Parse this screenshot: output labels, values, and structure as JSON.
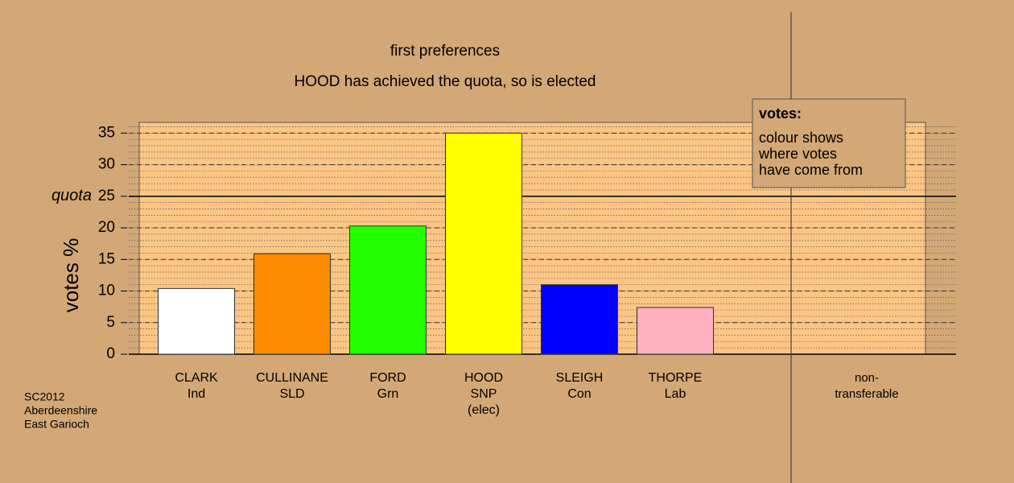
{
  "chart_data": {
    "type": "bar",
    "title": "first preferences",
    "subtitle": "HOOD has achieved the quota, so is elected",
    "y_label": "votes %",
    "categories": [
      [
        "CLARK",
        "Ind"
      ],
      [
        "CULLINANE",
        "SLD"
      ],
      [
        "FORD",
        "Grn"
      ],
      [
        "HOOD",
        "SNP",
        "(elec)"
      ],
      [
        "SLEIGH",
        "Con"
      ],
      [
        "THORPE",
        "Lab"
      ],
      null,
      [
        "non-",
        "transferable"
      ]
    ],
    "values": [
      10.4,
      15.9,
      20.3,
      35.0,
      11.0,
      7.4,
      null,
      null
    ],
    "colors": [
      "#ffffff",
      "#ff8c00",
      "#22ff00",
      "#ffff00",
      "#0000ff",
      "#ffb0c0",
      null,
      null
    ],
    "ylim": [
      0,
      36.7
    ],
    "yticks": [
      0,
      5,
      10,
      15,
      20,
      25,
      30,
      35
    ],
    "quota": {
      "value": 25,
      "label": "quota"
    },
    "legend": {
      "title": "votes:",
      "lines": [
        "colour shows",
        "where votes",
        "have come from"
      ]
    },
    "footnote": [
      "SC2012",
      "Aberdeenshire",
      "East Garioch"
    ],
    "grid": true
  }
}
